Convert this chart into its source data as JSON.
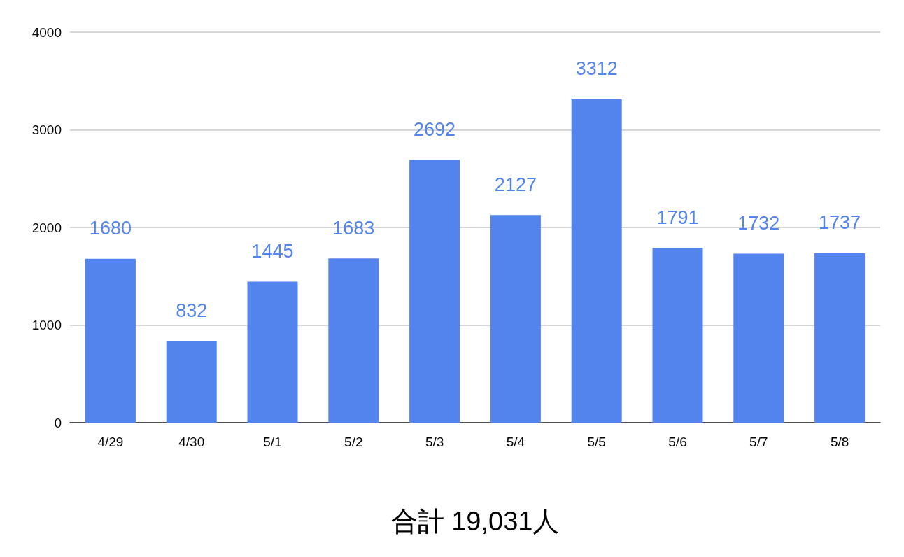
{
  "chart_data": {
    "type": "bar",
    "xlabel": "合計 19,031人",
    "categories": [
      "4/29",
      "4/30",
      "5/1",
      "5/2",
      "5/3",
      "5/4",
      "5/5",
      "5/6",
      "5/7",
      "5/8"
    ],
    "values": [
      1680,
      832,
      1445,
      1683,
      2692,
      2127,
      3312,
      1791,
      1732,
      1737
    ],
    "color": "#5383ec",
    "data_labels": true,
    "ylim": [
      0,
      4000
    ],
    "yticks": [
      0,
      1000,
      2000,
      3000,
      4000
    ],
    "grid": "y"
  }
}
